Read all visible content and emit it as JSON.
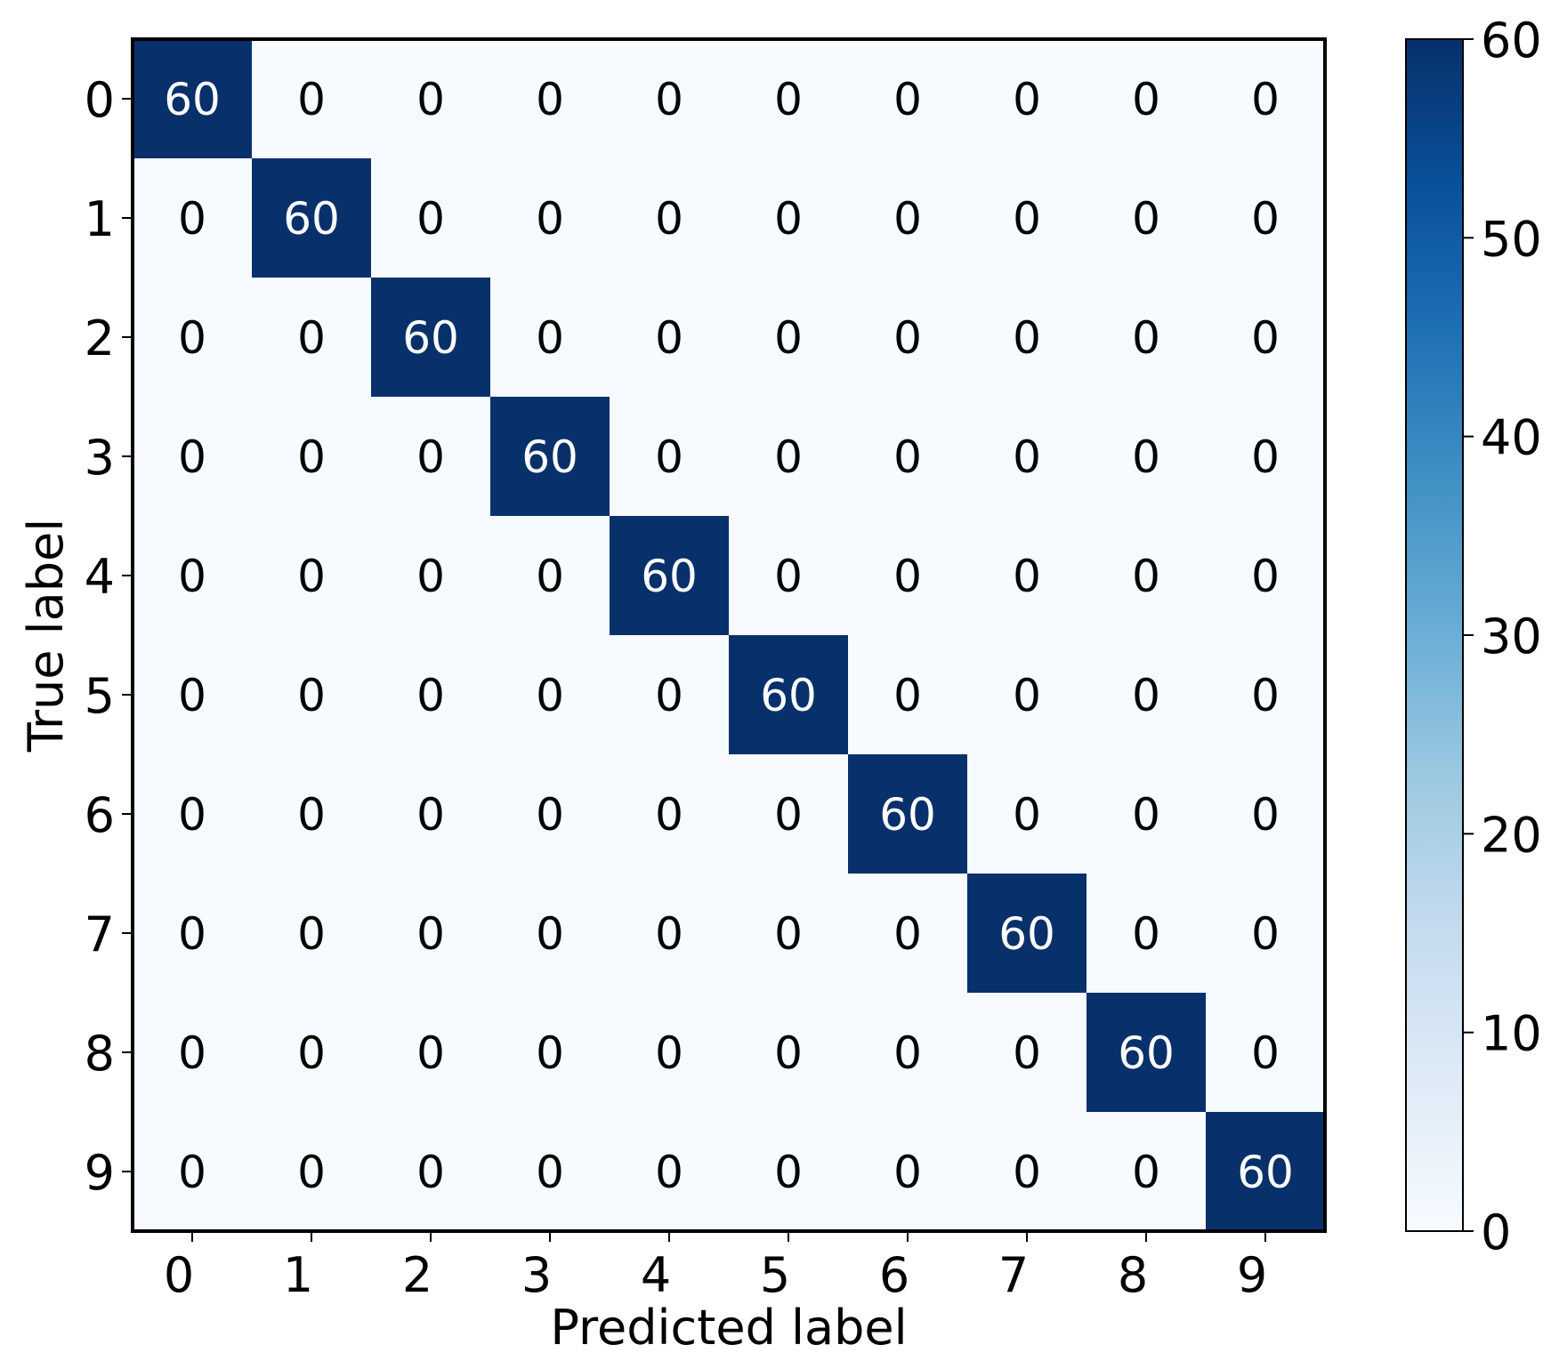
{
  "chart_data": {
    "type": "heatmap",
    "title": "",
    "xlabel": "Predicted label",
    "ylabel": "True label",
    "x_categories": [
      "0",
      "1",
      "2",
      "3",
      "4",
      "5",
      "6",
      "7",
      "8",
      "9"
    ],
    "y_categories": [
      "0",
      "1",
      "2",
      "3",
      "4",
      "5",
      "6",
      "7",
      "8",
      "9"
    ],
    "values": [
      [
        60,
        0,
        0,
        0,
        0,
        0,
        0,
        0,
        0,
        0
      ],
      [
        0,
        60,
        0,
        0,
        0,
        0,
        0,
        0,
        0,
        0
      ],
      [
        0,
        0,
        60,
        0,
        0,
        0,
        0,
        0,
        0,
        0
      ],
      [
        0,
        0,
        0,
        60,
        0,
        0,
        0,
        0,
        0,
        0
      ],
      [
        0,
        0,
        0,
        0,
        60,
        0,
        0,
        0,
        0,
        0
      ],
      [
        0,
        0,
        0,
        0,
        0,
        60,
        0,
        0,
        0,
        0
      ],
      [
        0,
        0,
        0,
        0,
        0,
        0,
        60,
        0,
        0,
        0
      ],
      [
        0,
        0,
        0,
        0,
        0,
        0,
        0,
        60,
        0,
        0
      ],
      [
        0,
        0,
        0,
        0,
        0,
        0,
        0,
        0,
        60,
        0
      ],
      [
        0,
        0,
        0,
        0,
        0,
        0,
        0,
        0,
        0,
        60
      ]
    ],
    "colorbar": {
      "range": [
        0,
        60
      ],
      "ticks": [
        0,
        10,
        20,
        30,
        40,
        50,
        60
      ],
      "colormap": "Blues"
    },
    "grid": false
  }
}
